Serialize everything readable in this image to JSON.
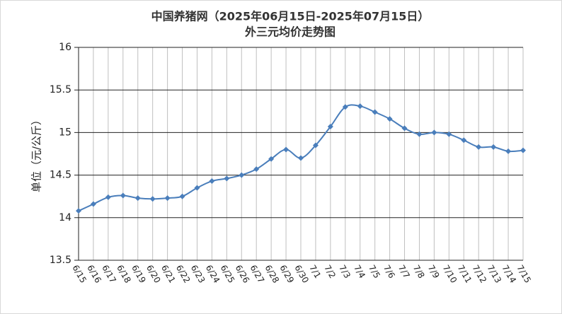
{
  "chart_data": {
    "type": "line",
    "title": "中国养猪网（2025年06月15日-2025年07月15日）",
    "subtitle": "外三元均价走势图",
    "y_label": "单位（元/公斤）",
    "categories": [
      "6/15",
      "6/16",
      "6/17",
      "6/18",
      "6/19",
      "6/20",
      "6/21",
      "6/22",
      "6/23",
      "6/24",
      "6/25",
      "6/26",
      "6/27",
      "6/28",
      "6/29",
      "6/30",
      "7/1",
      "7/2",
      "7/3",
      "7/4",
      "7/5",
      "7/6",
      "7/7",
      "7/8",
      "7/9",
      "7/10",
      "7/11",
      "7/12",
      "7/13",
      "7/14",
      "7/15"
    ],
    "series": [
      {
        "name": "外三元均价",
        "color": "#4a7ebb",
        "values": [
          14.08,
          14.16,
          14.24,
          14.26,
          14.23,
          14.22,
          14.23,
          14.25,
          14.35,
          14.43,
          14.46,
          14.5,
          14.57,
          14.69,
          14.8,
          14.7,
          14.85,
          15.07,
          15.3,
          15.31,
          15.24,
          15.16,
          15.05,
          14.98,
          15.0,
          14.98,
          14.91,
          14.83,
          14.83,
          14.78,
          14.79
        ]
      }
    ],
    "ylim": [
      13.5,
      16
    ],
    "yticks": [
      13.5,
      14,
      14.5,
      15,
      15.5,
      16
    ],
    "grid": true
  }
}
